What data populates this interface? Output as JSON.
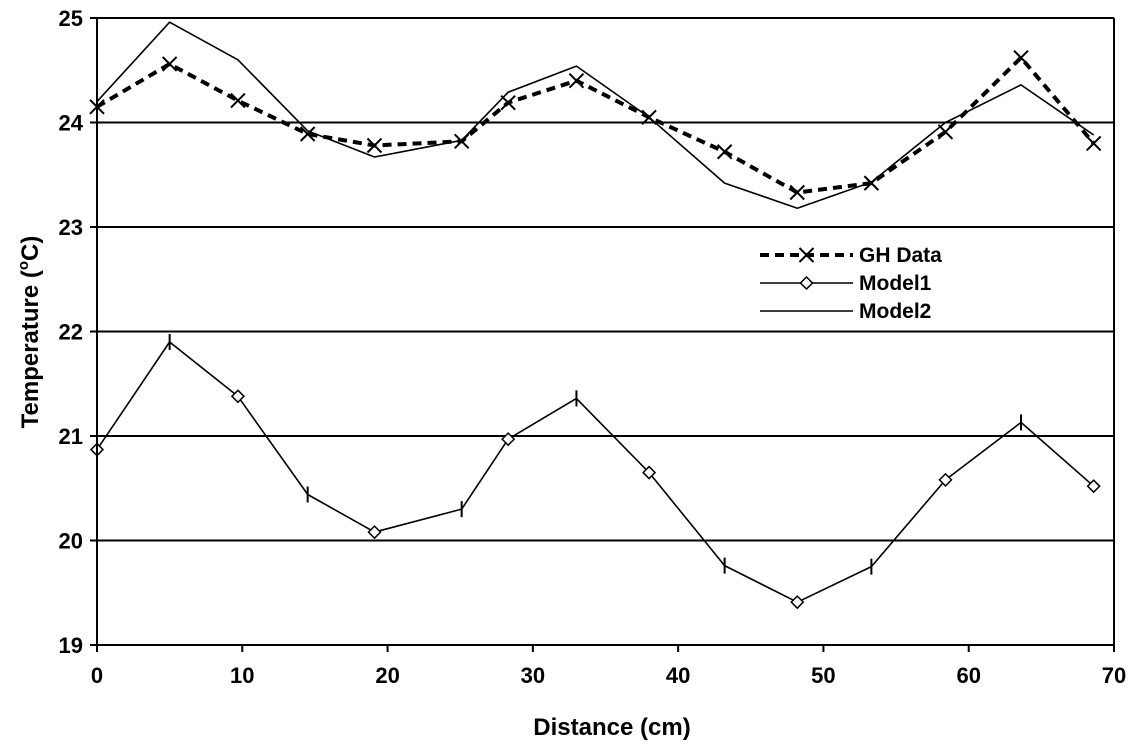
{
  "chart_data": {
    "type": "line",
    "xlabel": "Distance (cm)",
    "ylabel": {
      "main": "Temperature (",
      "sup": "o",
      "tail": "C)"
    },
    "xlim": [
      0,
      70
    ],
    "ylim": [
      19,
      25
    ],
    "xticks": [
      0,
      10,
      20,
      30,
      40,
      50,
      60,
      70
    ],
    "yticks": [
      19,
      20,
      21,
      22,
      23,
      24,
      25
    ],
    "grid": "horizontal",
    "legend_placement": "center-right",
    "series": [
      {
        "name": "GH Data",
        "style": "dashed",
        "marker": "x",
        "color": "#000000",
        "x": [
          0,
          5,
          9.7,
          14.5,
          19.1,
          25.1,
          28.3,
          33,
          38,
          43.2,
          48.2,
          53.3,
          58.4,
          63.6,
          68.6
        ],
        "y": [
          24.15,
          24.56,
          24.21,
          23.89,
          23.78,
          23.82,
          24.19,
          24.4,
          24.05,
          23.72,
          23.33,
          23.42,
          23.91,
          24.62,
          23.8
        ]
      },
      {
        "name": "Model1",
        "style": "solid",
        "marker": "diamond-alt",
        "color": "#000000",
        "x": [
          0,
          5,
          9.7,
          14.5,
          19.1,
          25.1,
          28.3,
          33,
          38,
          43.2,
          48.2,
          53.3,
          58.4,
          63.6,
          68.6
        ],
        "y": [
          20.87,
          21.9,
          21.38,
          20.44,
          20.08,
          20.3,
          20.97,
          21.36,
          20.65,
          19.76,
          19.41,
          19.75,
          20.58,
          21.13,
          20.52
        ]
      },
      {
        "name": "Model2",
        "style": "solid",
        "marker": "none",
        "color": "#000000",
        "x": [
          0,
          5,
          9.7,
          14.5,
          19.1,
          25.1,
          28.3,
          33,
          38,
          43.2,
          48.2,
          53.3,
          58.4,
          63.6,
          68.6
        ],
        "y": [
          24.2,
          24.96,
          24.6,
          23.92,
          23.67,
          23.83,
          24.29,
          24.54,
          24.05,
          23.42,
          23.18,
          23.43,
          24.0,
          24.36,
          23.88
        ]
      }
    ]
  }
}
